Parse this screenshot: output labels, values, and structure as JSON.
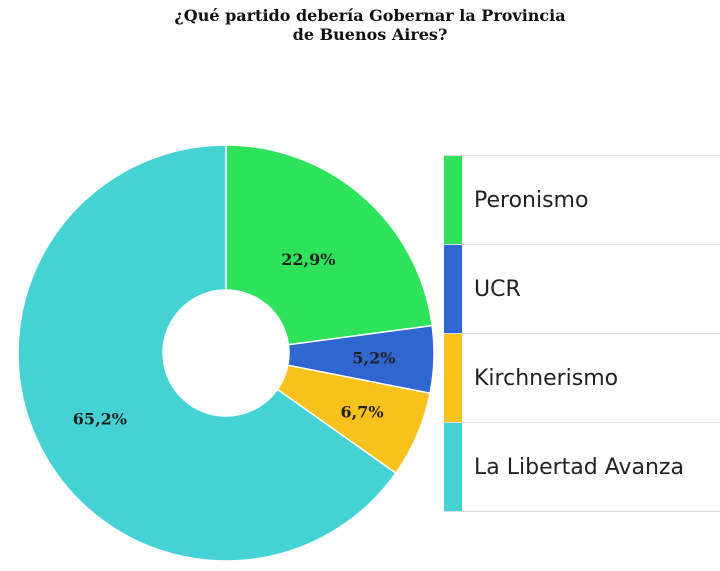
{
  "chart_data": {
    "type": "pie",
    "title": "¿Qué partido debería Gobernar la Provincia de Buenos Aires?",
    "title_lines": [
      "¿Qué partido debería Gobernar la Provincia",
      "de Buenos Aires?"
    ],
    "categories": [
      "Peronismo",
      "UCR",
      "Kirchnerismo",
      "La Libertad Avanza"
    ],
    "values": [
      22.9,
      5.2,
      6.7,
      65.2
    ],
    "labels": [
      "22,9%",
      "5,2%",
      "6,7%",
      "65,2%"
    ],
    "colors": [
      "#2ee25c",
      "#2f66cf",
      "#f7c21b",
      "#44d2d4"
    ],
    "donut": true,
    "legend_position": "right"
  }
}
